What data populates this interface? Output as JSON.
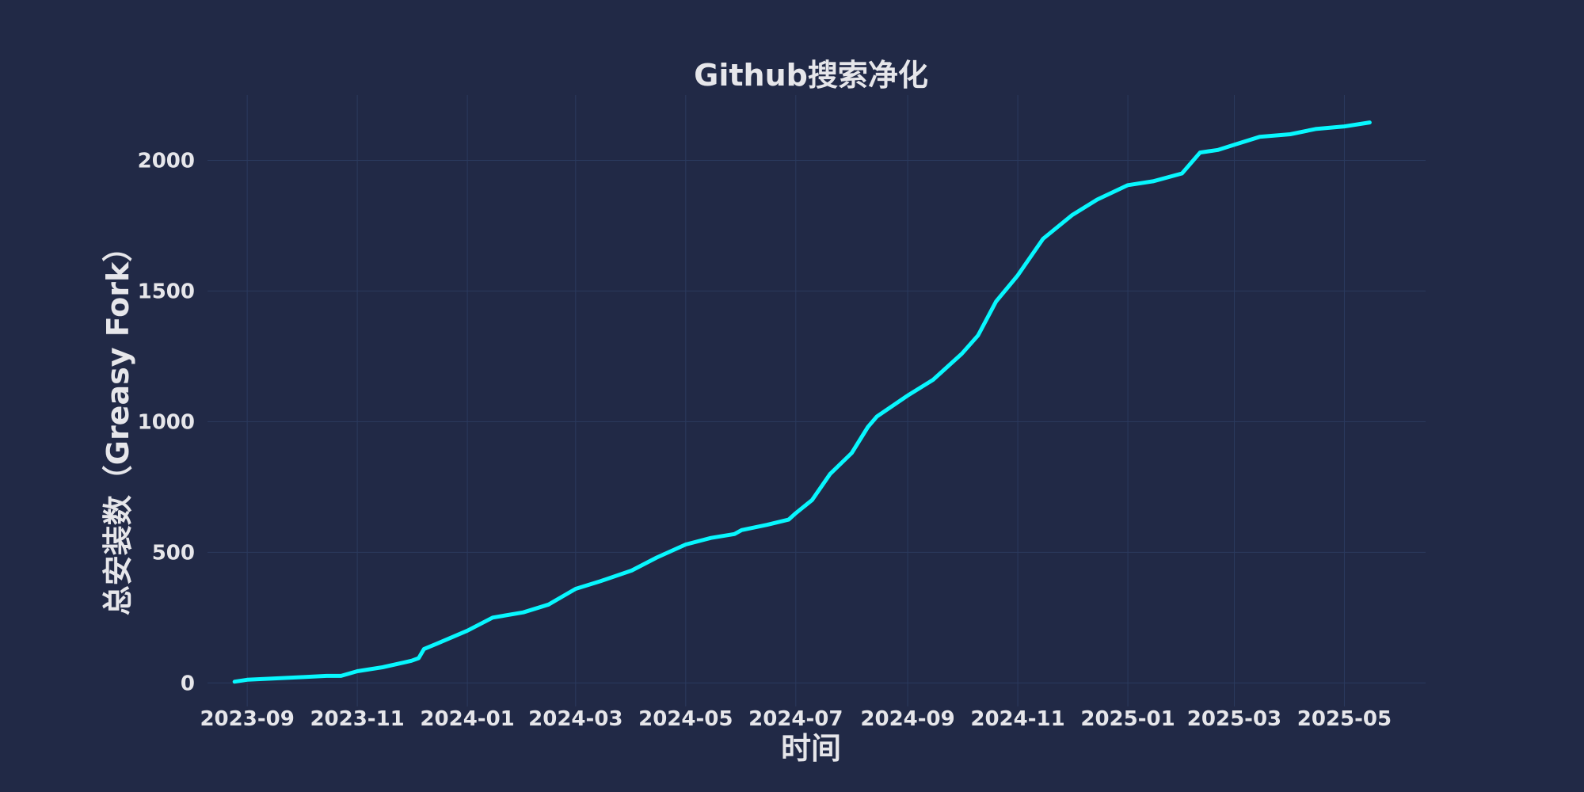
{
  "chart_data": {
    "type": "line",
    "title": "Github搜索净化",
    "xlabel": "时间",
    "ylabel": "总安装数（Greasy Fork）",
    "x_ticks": [
      "2023-09",
      "2023-11",
      "2024-01",
      "2024-03",
      "2024-05",
      "2024-07",
      "2024-09",
      "2024-11",
      "2025-01",
      "2025-03",
      "2025-05"
    ],
    "y_ticks": [
      0,
      500,
      1000,
      1500,
      2000
    ],
    "xlim": [
      "2023-08-10",
      "2025-06-15"
    ],
    "ylim": [
      -90,
      2250
    ],
    "grid": true,
    "colors": {
      "background": "#212946",
      "line": "#08F7FE",
      "grid": "#2b3a5e",
      "text": "#e6e6ea"
    },
    "series": [
      {
        "x": [
          "2023-08-25",
          "2023-09-01",
          "2023-09-15",
          "2023-10-01",
          "2023-10-15",
          "2023-10-23",
          "2023-11-01",
          "2023-11-15",
          "2023-12-01",
          "2023-12-05",
          "2023-12-08",
          "2023-12-15",
          "2024-01-01",
          "2024-01-15",
          "2024-02-01",
          "2024-02-15",
          "2024-03-01",
          "2024-03-15",
          "2024-04-01",
          "2024-04-15",
          "2024-05-01",
          "2024-05-15",
          "2024-05-28",
          "2024-06-01",
          "2024-06-15",
          "2024-06-27",
          "2024-07-01",
          "2024-07-10",
          "2024-07-20",
          "2024-08-01",
          "2024-08-10",
          "2024-08-15",
          "2024-09-01",
          "2024-09-15",
          "2024-10-01",
          "2024-10-10",
          "2024-10-20",
          "2024-11-01",
          "2024-11-15",
          "2024-12-01",
          "2024-12-15",
          "2025-01-01",
          "2025-01-15",
          "2025-01-31",
          "2025-02-10",
          "2025-02-20",
          "2025-03-01",
          "2025-03-15",
          "2025-04-01",
          "2025-04-15",
          "2025-05-01",
          "2025-05-15"
        ],
        "y": [
          5,
          12,
          17,
          22,
          27,
          27,
          45,
          60,
          85,
          95,
          130,
          150,
          200,
          250,
          270,
          300,
          360,
          390,
          430,
          480,
          530,
          555,
          570,
          585,
          605,
          625,
          650,
          700,
          800,
          880,
          980,
          1020,
          1100,
          1160,
          1260,
          1330,
          1460,
          1560,
          1700,
          1790,
          1850,
          1905,
          1920,
          1950,
          2030,
          2040,
          2060,
          2090,
          2100,
          2120,
          2130,
          2145
        ]
      }
    ]
  }
}
